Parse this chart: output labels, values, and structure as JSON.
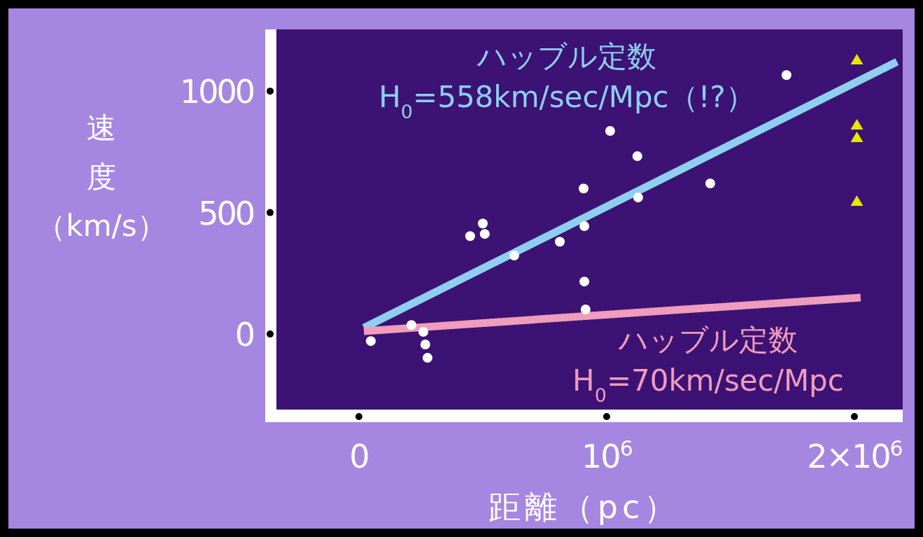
{
  "chart_data": {
    "type": "scatter",
    "xlabel": "距離（pc）",
    "ylabel": "速度（km/s）",
    "xlim": [
      -333000,
      2195000
    ],
    "ylim": [
      -311,
      1254
    ],
    "xticks": [
      0,
      {
        "value": 1000000,
        "label": "10$^{6}$"
      },
      {
        "value": 2000000,
        "label": "2×10$^{6}$"
      }
    ],
    "yticks": [
      0,
      500,
      1000
    ],
    "series": [
      {
        "color": "#ffffff",
        "marker": "circle",
        "x": [
          48000,
          212000,
          260000,
          268000,
          277000,
          449000,
          500000,
          508000,
          627000,
          811000,
          907000,
          910000,
          910000,
          915000,
          1014000,
          1124000,
          1127000,
          1418000,
          1726000
        ],
        "values": [
          -29,
          37,
          9,
          -43,
          -98,
          403,
          455,
          412,
          323,
          380,
          599,
          444,
          216,
          101,
          836,
          732,
          562,
          620,
          1066
        ]
      },
      {
        "color": "#e6e600",
        "marker": "triangle",
        "x": [
          2010000,
          2010000,
          2010000,
          2010000
        ],
        "values": [
          1130,
          862,
          810,
          548
        ]
      },
      {
        "type": "line",
        "name": "ハッブル定数\nH$_{0}$=558km/sec/Mpc（!?）",
        "color": "#8ecff0",
        "x": [
          20000,
          2172000
        ],
        "values": [
          26,
          1121
        ]
      },
      {
        "type": "line",
        "name": "ハッブル定数\nH$_{0}$=70km/sec/Mpc",
        "color": "#f09cbc",
        "x": [
          20000,
          2025000
        ],
        "values": [
          12,
          150
        ]
      }
    ]
  }
}
